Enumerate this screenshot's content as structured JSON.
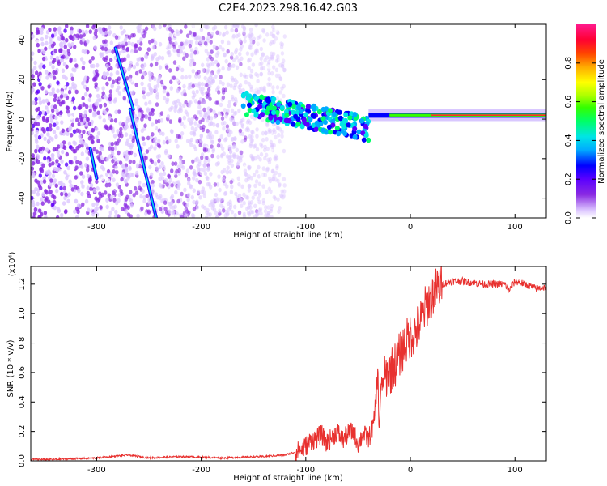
{
  "title": "C2E4.2023.298.16.42.G03",
  "colors": {
    "snr_line": "#e8312f",
    "axes": "#000000"
  },
  "chart_data": [
    {
      "type": "heatmap",
      "xlabel": "Height of straight line (km)",
      "ylabel": "Frequency (Hz)",
      "xlim": [
        -363,
        130
      ],
      "ylim": [
        -50,
        48
      ],
      "x_ticks": [
        -300,
        -200,
        -100,
        0,
        100
      ],
      "y_ticks": [
        -40,
        -20,
        0,
        20,
        40
      ],
      "colorbar": {
        "label": "Normalized spectral amplitude",
        "range": [
          0,
          1
        ],
        "ticks": [
          "0.0",
          "0.2",
          "0.4",
          "0.6",
          "0.8"
        ],
        "tick_values": [
          0,
          0.2,
          0.4,
          0.6,
          0.8
        ],
        "colormap": [
          "#ffffff",
          "#dcc6ff",
          "#8a2be2",
          "#5b00ff",
          "#0000ff",
          "#00aaff",
          "#00e5e5",
          "#00ff66",
          "#33ff00",
          "#aaff00",
          "#ffff00",
          "#ffaa00",
          "#ff4400",
          "#ff0033",
          "#ff1a8c"
        ]
      },
      "features": [
        {
          "name": "carrier",
          "x_range": [
            -40,
            130
          ],
          "frequency": 2,
          "amplitude": 0.85
        },
        {
          "name": "transition",
          "x_range": [
            -160,
            -40
          ],
          "frequency_start": 8,
          "frequency_end": -5,
          "amplitude": 0.4
        },
        {
          "name": "streak-1",
          "x": [
            -282,
            -265
          ],
          "y": [
            36,
            5
          ],
          "amplitude": 0.3
        },
        {
          "name": "streak-2",
          "x": [
            -268,
            -243
          ],
          "y": [
            5,
            -50
          ],
          "amplitude": 0.3
        },
        {
          "name": "streak-3",
          "x": [
            -306,
            -300
          ],
          "y": [
            -15,
            -30
          ],
          "amplitude": 0.2
        }
      ]
    },
    {
      "type": "line",
      "xlabel": "Height of straight line (km)",
      "ylabel": "SNR (10 * v/v)",
      "y_scale_label": "(x10⁴)",
      "xlim": [
        -363,
        130
      ],
      "ylim": [
        0,
        1.32
      ],
      "x_ticks": [
        -300,
        -200,
        -100,
        0,
        100
      ],
      "y_ticks": [
        "0.0",
        "0.2",
        "0.4",
        "0.6",
        "0.8",
        "1.0",
        "1.2"
      ],
      "y_tick_values": [
        0,
        0.2,
        0.4,
        0.6,
        0.8,
        1.0,
        1.2
      ],
      "series": [
        {
          "color": "#e8312f",
          "x": [
            -363,
            -340,
            -300,
            -270,
            -250,
            -220,
            -180,
            -140,
            -120,
            -105,
            -100,
            -95,
            -90,
            -85,
            -80,
            -75,
            -70,
            -65,
            -60,
            -55,
            -50,
            -45,
            -40,
            -35,
            -31,
            -30,
            -28,
            -25,
            -20,
            -15,
            -10,
            -5,
            0,
            5,
            10,
            15,
            20,
            25,
            30,
            40,
            50,
            60,
            70,
            80,
            90,
            95,
            100,
            110,
            120,
            130
          ],
          "y": [
            0.01,
            0.01,
            0.02,
            0.04,
            0.02,
            0.03,
            0.02,
            0.03,
            0.04,
            0.07,
            0.1,
            0.14,
            0.15,
            0.18,
            0.12,
            0.16,
            0.2,
            0.14,
            0.18,
            0.2,
            0.12,
            0.18,
            0.15,
            0.25,
            0.6,
            0.2,
            0.5,
            0.55,
            0.6,
            0.65,
            0.72,
            0.8,
            0.85,
            0.88,
            0.95,
            1.05,
            1.12,
            1.17,
            1.2,
            1.22,
            1.22,
            1.21,
            1.2,
            1.2,
            1.2,
            1.16,
            1.22,
            1.2,
            1.17,
            1.18
          ]
        }
      ]
    }
  ]
}
